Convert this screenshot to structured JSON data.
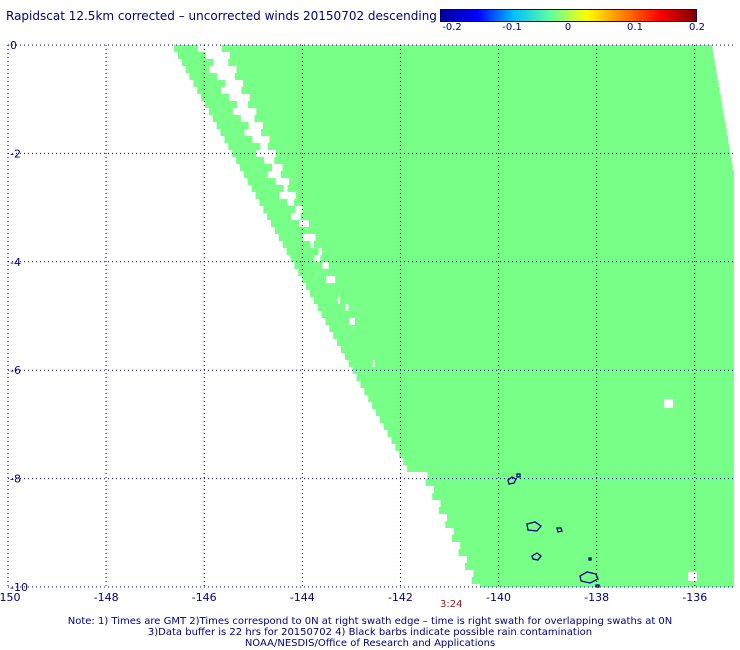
{
  "chart_data": {
    "type": "heatmap",
    "title": "Rapidscat 12.5km corrected – uncorrected winds 20150702 descending",
    "colorbar": {
      "ticks": [
        "-0.2",
        "-0.1",
        "0",
        "0.1",
        "0.2"
      ],
      "range": [
        -0.2,
        0.2
      ],
      "colors": [
        "#0000a0",
        "#0000ff",
        "#00c0ff",
        "#60ffa0",
        "#ffff00",
        "#ff8000",
        "#ff0000",
        "#800000"
      ]
    },
    "x_ticks": [
      "-150",
      "-148",
      "-146",
      "-144",
      "-142",
      "-140",
      "-138",
      "-136"
    ],
    "y_ticks": [
      "0",
      "-2",
      "-4",
      "-6",
      "-8",
      "-10"
    ],
    "xlim": [
      -150,
      -135.2
    ],
    "ylim": [
      -10,
      0
    ],
    "grid": true,
    "swath_value": 0,
    "swath_color": "#77ff88",
    "coast_color": "#000080",
    "time_label": "3:24"
  },
  "notes": [
    "Note: 1) Times are GMT 2)Times correspond to 0N at right swath edge – time is right swath for overlapping swaths at 0N",
    "3)Data buffer is 22 hrs for 20150702 4) Black barbs indicate possible rain contamination",
    "NOAA/NESDIS/Office of Research and Applications"
  ]
}
